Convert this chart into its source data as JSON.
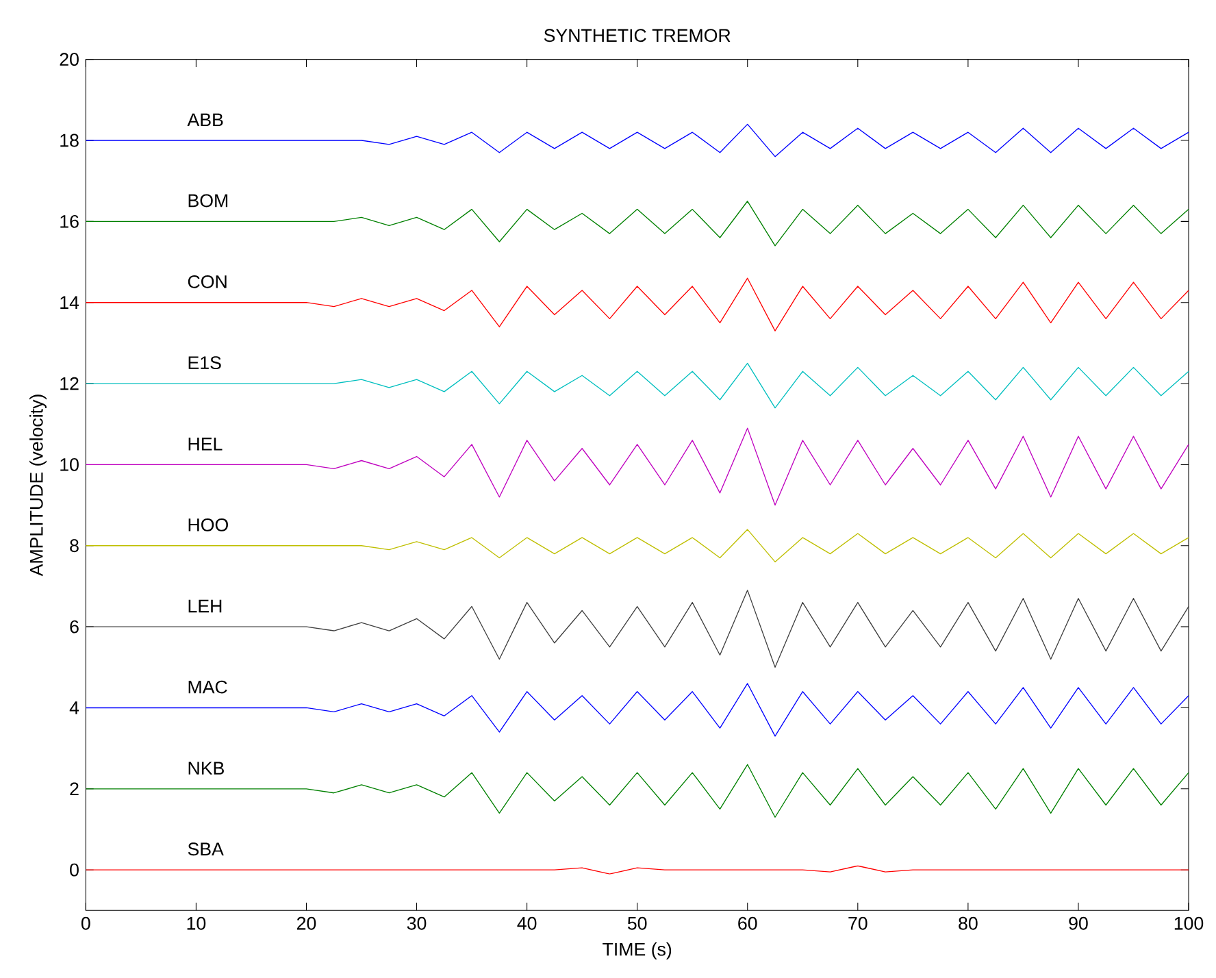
{
  "chart_data": {
    "type": "line",
    "title": "SYNTHETIC TREMOR",
    "xlabel": "TIME (s)",
    "ylabel": "AMPLITUDE (velocity)",
    "xlim": [
      0,
      100
    ],
    "ylim": [
      -1,
      20
    ],
    "xticks": [
      0,
      10,
      20,
      30,
      40,
      50,
      60,
      70,
      80,
      90,
      100
    ],
    "yticks": [
      0,
      2,
      4,
      6,
      8,
      10,
      12,
      14,
      16,
      18,
      20
    ],
    "x": [
      0,
      2.5,
      5,
      7.5,
      10,
      12.5,
      15,
      17.5,
      20,
      22.5,
      25,
      27.5,
      30,
      32.5,
      35,
      37.5,
      40,
      42.5,
      45,
      47.5,
      50,
      52.5,
      55,
      57.5,
      60,
      62.5,
      65,
      67.5,
      70,
      72.5,
      75,
      77.5,
      80,
      82.5,
      85,
      87.5,
      90,
      92.5,
      95,
      97.5,
      100
    ],
    "series": [
      {
        "name": "ABB",
        "color": "#0000ff",
        "values": [
          18,
          18,
          18,
          18,
          18,
          18,
          18,
          18,
          18,
          18,
          18,
          17.9,
          18.1,
          17.9,
          18.2,
          17.7,
          18.2,
          17.8,
          18.2,
          17.8,
          18.2,
          17.8,
          18.2,
          17.7,
          18.4,
          17.6,
          18.2,
          17.8,
          18.3,
          17.8,
          18.2,
          17.8,
          18.2,
          17.7,
          18.3,
          17.7,
          18.3,
          17.8,
          18.3,
          17.8,
          18.2
        ]
      },
      {
        "name": "BOM",
        "color": "#008000",
        "values": [
          16,
          16,
          16,
          16,
          16,
          16,
          16,
          16,
          16,
          16,
          16.1,
          15.9,
          16.1,
          15.8,
          16.3,
          15.5,
          16.3,
          15.8,
          16.2,
          15.7,
          16.3,
          15.7,
          16.3,
          15.6,
          16.5,
          15.4,
          16.3,
          15.7,
          16.4,
          15.7,
          16.2,
          15.7,
          16.3,
          15.6,
          16.4,
          15.6,
          16.4,
          15.7,
          16.4,
          15.7,
          16.3
        ]
      },
      {
        "name": "CON",
        "color": "#ff0000",
        "values": [
          14,
          14,
          14,
          14,
          14,
          14,
          14,
          14,
          14,
          13.9,
          14.1,
          13.9,
          14.1,
          13.8,
          14.3,
          13.4,
          14.4,
          13.7,
          14.3,
          13.6,
          14.4,
          13.7,
          14.4,
          13.5,
          14.6,
          13.3,
          14.4,
          13.6,
          14.4,
          13.7,
          14.3,
          13.6,
          14.4,
          13.6,
          14.5,
          13.5,
          14.5,
          13.6,
          14.5,
          13.6,
          14.3
        ]
      },
      {
        "name": "E1S",
        "color": "#00bfbf",
        "values": [
          12,
          12,
          12,
          12,
          12,
          12,
          12,
          12,
          12,
          12,
          12.1,
          11.9,
          12.1,
          11.8,
          12.3,
          11.5,
          12.3,
          11.8,
          12.2,
          11.7,
          12.3,
          11.7,
          12.3,
          11.6,
          12.5,
          11.4,
          12.3,
          11.7,
          12.4,
          11.7,
          12.2,
          11.7,
          12.3,
          11.6,
          12.4,
          11.6,
          12.4,
          11.7,
          12.4,
          11.7,
          12.3
        ]
      },
      {
        "name": "HEL",
        "color": "#bf00bf",
        "values": [
          10,
          10,
          10,
          10,
          10,
          10,
          10,
          10,
          10,
          9.9,
          10.1,
          9.9,
          10.2,
          9.7,
          10.5,
          9.2,
          10.6,
          9.6,
          10.4,
          9.5,
          10.5,
          9.5,
          10.6,
          9.3,
          10.9,
          9.0,
          10.6,
          9.5,
          10.6,
          9.5,
          10.4,
          9.5,
          10.6,
          9.4,
          10.7,
          9.2,
          10.7,
          9.4,
          10.7,
          9.4,
          10.5
        ]
      },
      {
        "name": "HOO",
        "color": "#bfbf00",
        "values": [
          8,
          8,
          8,
          8,
          8,
          8,
          8,
          8,
          8,
          8,
          8,
          7.9,
          8.1,
          7.9,
          8.2,
          7.7,
          8.2,
          7.8,
          8.2,
          7.8,
          8.2,
          7.8,
          8.2,
          7.7,
          8.4,
          7.6,
          8.2,
          7.8,
          8.3,
          7.8,
          8.2,
          7.8,
          8.2,
          7.7,
          8.3,
          7.7,
          8.3,
          7.8,
          8.3,
          7.8,
          8.2
        ]
      },
      {
        "name": "LEH",
        "color": "#404040",
        "values": [
          6,
          6,
          6,
          6,
          6,
          6,
          6,
          6,
          6,
          5.9,
          6.1,
          5.9,
          6.2,
          5.7,
          6.5,
          5.2,
          6.6,
          5.6,
          6.4,
          5.5,
          6.5,
          5.5,
          6.6,
          5.3,
          6.9,
          5.0,
          6.6,
          5.5,
          6.6,
          5.5,
          6.4,
          5.5,
          6.6,
          5.4,
          6.7,
          5.2,
          6.7,
          5.4,
          6.7,
          5.4,
          6.5
        ]
      },
      {
        "name": "MAC",
        "color": "#0000ff",
        "values": [
          4,
          4,
          4,
          4,
          4,
          4,
          4,
          4,
          4,
          3.9,
          4.1,
          3.9,
          4.1,
          3.8,
          4.3,
          3.4,
          4.4,
          3.7,
          4.3,
          3.6,
          4.4,
          3.7,
          4.4,
          3.5,
          4.6,
          3.3,
          4.4,
          3.6,
          4.4,
          3.7,
          4.3,
          3.6,
          4.4,
          3.6,
          4.5,
          3.5,
          4.5,
          3.6,
          4.5,
          3.6,
          4.3
        ]
      },
      {
        "name": "NKB",
        "color": "#008000",
        "values": [
          2,
          2,
          2,
          2,
          2,
          2,
          2,
          2,
          2,
          1.9,
          2.1,
          1.9,
          2.1,
          1.8,
          2.4,
          1.4,
          2.4,
          1.7,
          2.3,
          1.6,
          2.4,
          1.6,
          2.4,
          1.5,
          2.6,
          1.3,
          2.4,
          1.6,
          2.5,
          1.6,
          2.3,
          1.6,
          2.4,
          1.5,
          2.5,
          1.4,
          2.5,
          1.6,
          2.5,
          1.6,
          2.4
        ]
      },
      {
        "name": "SBA",
        "color": "#ff0000",
        "values": [
          0,
          0,
          0,
          0,
          0,
          0,
          0,
          0,
          0,
          0,
          0,
          0,
          0,
          0,
          0,
          0,
          0,
          0,
          0.05,
          -0.1,
          0.05,
          0,
          0,
          0,
          0,
          0,
          0,
          -0.05,
          0.1,
          -0.05,
          0,
          0,
          0,
          0,
          0,
          0,
          0,
          0,
          0,
          0,
          0
        ]
      }
    ]
  }
}
